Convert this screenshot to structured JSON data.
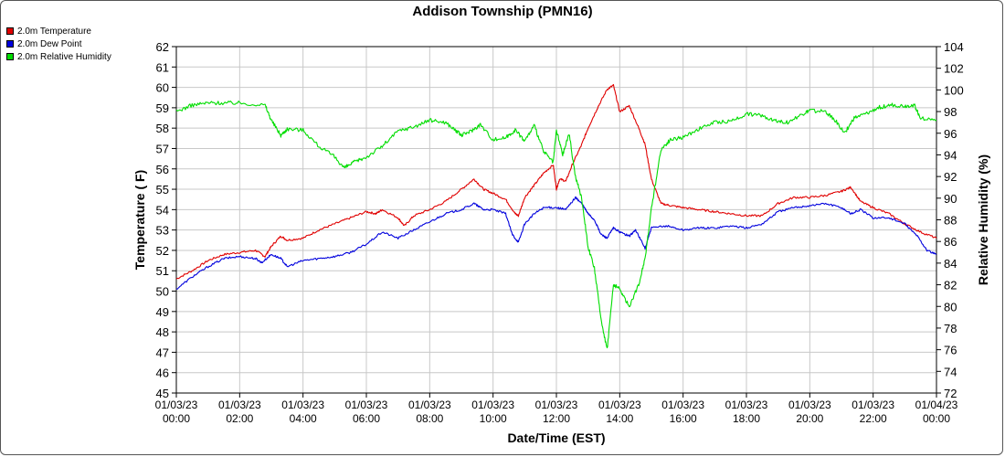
{
  "title": "Addison Township (PMN16)",
  "legend": [
    {
      "label": "2.0m Temperature",
      "color": "#e00000"
    },
    {
      "label": "2.0m Dew Point",
      "color": "#0000dd"
    },
    {
      "label": "2.0m Relative Humidity",
      "color": "#00dd00"
    }
  ],
  "chart_data": {
    "type": "line",
    "title": "Addison Township (PMN16)",
    "xlabel": "Date/Time (EST)",
    "ylabel": "Temperature ( F)",
    "y2label": "Relative Humidity (%)",
    "xlim": [
      0,
      24
    ],
    "ylim": [
      45,
      62
    ],
    "y2lim": [
      72,
      104
    ],
    "grid": true,
    "legend_position": "top-left",
    "x_tick_labels": [
      [
        "01/03/23",
        "00:00"
      ],
      [
        "01/03/23",
        "02:00"
      ],
      [
        "01/03/23",
        "04:00"
      ],
      [
        "01/03/23",
        "06:00"
      ],
      [
        "01/03/23",
        "08:00"
      ],
      [
        "01/03/23",
        "10:00"
      ],
      [
        "01/03/23",
        "12:00"
      ],
      [
        "01/03/23",
        "14:00"
      ],
      [
        "01/03/23",
        "16:00"
      ],
      [
        "01/03/23",
        "18:00"
      ],
      [
        "01/03/23",
        "20:00"
      ],
      [
        "01/03/23",
        "22:00"
      ],
      [
        "01/04/23",
        "00:00"
      ]
    ],
    "y_ticks": [
      45,
      46,
      47,
      48,
      49,
      50,
      51,
      52,
      53,
      54,
      55,
      56,
      57,
      58,
      59,
      60,
      61,
      62
    ],
    "y2_ticks": [
      72,
      74,
      76,
      78,
      80,
      82,
      84,
      86,
      88,
      90,
      92,
      94,
      96,
      98,
      100,
      102,
      104
    ],
    "series": [
      {
        "name": "2.0m Temperature",
        "axis": "left",
        "color": "#e00000",
        "points": [
          [
            0,
            50.6
          ],
          [
            0.5,
            51.0
          ],
          [
            1,
            51.5
          ],
          [
            1.5,
            51.8
          ],
          [
            2,
            51.9
          ],
          [
            2.5,
            52.0
          ],
          [
            2.8,
            51.7
          ],
          [
            3,
            52.2
          ],
          [
            3.3,
            52.7
          ],
          [
            3.5,
            52.5
          ],
          [
            4,
            52.6
          ],
          [
            4.5,
            53.0
          ],
          [
            5,
            53.3
          ],
          [
            5.5,
            53.6
          ],
          [
            6,
            53.9
          ],
          [
            6.3,
            53.8
          ],
          [
            6.5,
            54.0
          ],
          [
            7,
            53.6
          ],
          [
            7.2,
            53.2
          ],
          [
            7.5,
            53.7
          ],
          [
            8,
            54.0
          ],
          [
            8.5,
            54.4
          ],
          [
            9,
            55.0
          ],
          [
            9.4,
            55.5
          ],
          [
            9.7,
            55.0
          ],
          [
            10,
            54.8
          ],
          [
            10.4,
            54.5
          ],
          [
            10.7,
            53.8
          ],
          [
            10.8,
            53.7
          ],
          [
            11,
            54.6
          ],
          [
            11.3,
            55.2
          ],
          [
            11.6,
            55.8
          ],
          [
            11.9,
            56.2
          ],
          [
            12,
            55.0
          ],
          [
            12.1,
            55.5
          ],
          [
            12.3,
            55.4
          ],
          [
            12.5,
            56.2
          ],
          [
            12.8,
            57.2
          ],
          [
            13,
            58.0
          ],
          [
            13.3,
            59.0
          ],
          [
            13.6,
            59.9
          ],
          [
            13.8,
            60.1
          ],
          [
            14,
            58.8
          ],
          [
            14.3,
            59.1
          ],
          [
            14.6,
            58.0
          ],
          [
            14.8,
            57.2
          ],
          [
            15,
            55.5
          ],
          [
            15.3,
            54.3
          ],
          [
            15.6,
            54.2
          ],
          [
            16,
            54.1
          ],
          [
            16.5,
            54.0
          ],
          [
            17,
            53.9
          ],
          [
            17.5,
            53.8
          ],
          [
            18,
            53.7
          ],
          [
            18.5,
            53.7
          ],
          [
            19,
            54.3
          ],
          [
            19.5,
            54.6
          ],
          [
            20,
            54.6
          ],
          [
            20.5,
            54.7
          ],
          [
            21,
            54.9
          ],
          [
            21.3,
            55.1
          ],
          [
            21.6,
            54.4
          ],
          [
            22,
            54.1
          ],
          [
            22.5,
            53.8
          ],
          [
            23,
            53.3
          ],
          [
            23.5,
            52.9
          ],
          [
            24,
            52.6
          ]
        ]
      },
      {
        "name": "2.0m Dew Point",
        "axis": "left",
        "color": "#0000dd",
        "points": [
          [
            0,
            50.1
          ],
          [
            0.5,
            50.7
          ],
          [
            1,
            51.2
          ],
          [
            1.5,
            51.6
          ],
          [
            2,
            51.7
          ],
          [
            2.5,
            51.6
          ],
          [
            2.7,
            51.4
          ],
          [
            3,
            51.8
          ],
          [
            3.3,
            51.6
          ],
          [
            3.5,
            51.2
          ],
          [
            4,
            51.5
          ],
          [
            4.5,
            51.6
          ],
          [
            5,
            51.7
          ],
          [
            5.5,
            51.9
          ],
          [
            6,
            52.3
          ],
          [
            6.5,
            52.9
          ],
          [
            7,
            52.6
          ],
          [
            7.5,
            53.0
          ],
          [
            8,
            53.4
          ],
          [
            8.5,
            53.8
          ],
          [
            9,
            54.0
          ],
          [
            9.4,
            54.3
          ],
          [
            9.7,
            54.0
          ],
          [
            10,
            54.0
          ],
          [
            10.4,
            53.8
          ],
          [
            10.6,
            52.8
          ],
          [
            10.8,
            52.4
          ],
          [
            11,
            53.3
          ],
          [
            11.3,
            53.8
          ],
          [
            11.6,
            54.1
          ],
          [
            12,
            54.1
          ],
          [
            12.3,
            54.0
          ],
          [
            12.6,
            54.6
          ],
          [
            12.8,
            54.3
          ],
          [
            13,
            53.8
          ],
          [
            13.2,
            53.5
          ],
          [
            13.4,
            52.8
          ],
          [
            13.6,
            52.6
          ],
          [
            13.8,
            53.1
          ],
          [
            14,
            52.9
          ],
          [
            14.3,
            52.7
          ],
          [
            14.5,
            53.0
          ],
          [
            14.8,
            52.1
          ],
          [
            15,
            53.1
          ],
          [
            15.5,
            53.2
          ],
          [
            16,
            53.0
          ],
          [
            16.5,
            53.1
          ],
          [
            17,
            53.1
          ],
          [
            17.5,
            53.2
          ],
          [
            18,
            53.1
          ],
          [
            18.5,
            53.3
          ],
          [
            19,
            53.9
          ],
          [
            19.5,
            54.1
          ],
          [
            20,
            54.2
          ],
          [
            20.5,
            54.3
          ],
          [
            21,
            54.1
          ],
          [
            21.3,
            53.8
          ],
          [
            21.6,
            54.0
          ],
          [
            22,
            53.6
          ],
          [
            22.5,
            53.6
          ],
          [
            23,
            53.3
          ],
          [
            23.4,
            52.7
          ],
          [
            23.7,
            52.0
          ],
          [
            24,
            51.8
          ]
        ]
      },
      {
        "name": "2.0m Relative Humidity",
        "axis": "right",
        "color": "#00dd00",
        "points": [
          [
            0,
            98.0
          ],
          [
            0.5,
            98.6
          ],
          [
            1,
            98.8
          ],
          [
            1.5,
            98.8
          ],
          [
            2,
            98.8
          ],
          [
            2.8,
            98.6
          ],
          [
            3,
            97.2
          ],
          [
            3.3,
            95.8
          ],
          [
            3.5,
            96.4
          ],
          [
            4,
            96.3
          ],
          [
            4.5,
            94.8
          ],
          [
            5,
            93.8
          ],
          [
            5.3,
            92.8
          ],
          [
            5.6,
            93.3
          ],
          [
            6,
            93.8
          ],
          [
            6.5,
            94.8
          ],
          [
            7,
            96.2
          ],
          [
            7.5,
            96.6
          ],
          [
            8,
            97.2
          ],
          [
            8.5,
            97.0
          ],
          [
            8.8,
            96.3
          ],
          [
            9,
            95.8
          ],
          [
            9.3,
            96.2
          ],
          [
            9.6,
            96.8
          ],
          [
            10,
            95.4
          ],
          [
            10.4,
            95.6
          ],
          [
            10.7,
            96.3
          ],
          [
            11,
            95.3
          ],
          [
            11.3,
            96.7
          ],
          [
            11.6,
            94.3
          ],
          [
            11.9,
            93.3
          ],
          [
            12.0,
            96.3
          ],
          [
            12.2,
            94.0
          ],
          [
            12.4,
            96.0
          ],
          [
            12.6,
            92.0
          ],
          [
            12.8,
            90.0
          ],
          [
            13,
            85.5
          ],
          [
            13.2,
            83.5
          ],
          [
            13.4,
            79.0
          ],
          [
            13.6,
            76.0
          ],
          [
            13.8,
            82.0
          ],
          [
            14,
            81.6
          ],
          [
            14.3,
            80.0
          ],
          [
            14.6,
            82.0
          ],
          [
            14.8,
            84.5
          ],
          [
            15,
            89.0
          ],
          [
            15.3,
            94.5
          ],
          [
            15.6,
            95.4
          ],
          [
            16,
            95.6
          ],
          [
            16.5,
            96.4
          ],
          [
            17,
            97.0
          ],
          [
            17.5,
            97.1
          ],
          [
            18,
            97.8
          ],
          [
            18.5,
            97.6
          ],
          [
            18.9,
            97.2
          ],
          [
            19.3,
            97.0
          ],
          [
            19.8,
            97.8
          ],
          [
            20,
            98.1
          ],
          [
            20.5,
            98.0
          ],
          [
            20.8,
            97.2
          ],
          [
            21.1,
            96.0
          ],
          [
            21.4,
            97.4
          ],
          [
            21.8,
            97.8
          ],
          [
            22.2,
            98.4
          ],
          [
            22.6,
            98.6
          ],
          [
            23,
            98.5
          ],
          [
            23.3,
            98.6
          ],
          [
            23.5,
            97.4
          ],
          [
            24,
            97.2
          ]
        ]
      }
    ]
  }
}
